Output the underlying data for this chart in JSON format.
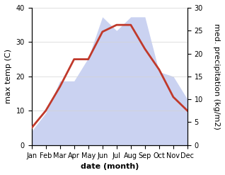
{
  "months": [
    "Jan",
    "Feb",
    "Mar",
    "Apr",
    "May",
    "Jun",
    "Jul",
    "Aug",
    "Sep",
    "Oct",
    "Nov",
    "Dec"
  ],
  "max_temp": [
    5,
    10,
    17,
    25,
    25,
    33,
    35,
    35,
    28,
    22,
    14,
    10
  ],
  "precipitation": [
    3,
    7,
    14,
    14,
    19,
    28,
    25,
    28,
    28,
    16,
    15,
    10
  ],
  "temp_color": "#c0392b",
  "precip_fill_color": "#c5cdf0",
  "precip_fill_alpha": 0.9,
  "temp_ylim": [
    0,
    40
  ],
  "precip_ylim": [
    0,
    30
  ],
  "xlabel": "date (month)",
  "ylabel_left": "max temp (C)",
  "ylabel_right": "med. precipitation (kg/m2)",
  "bg_color": "#ffffff",
  "xlabel_fontsize": 8,
  "ylabel_fontsize": 8,
  "tick_fontsize": 7,
  "temp_linewidth": 2.0
}
